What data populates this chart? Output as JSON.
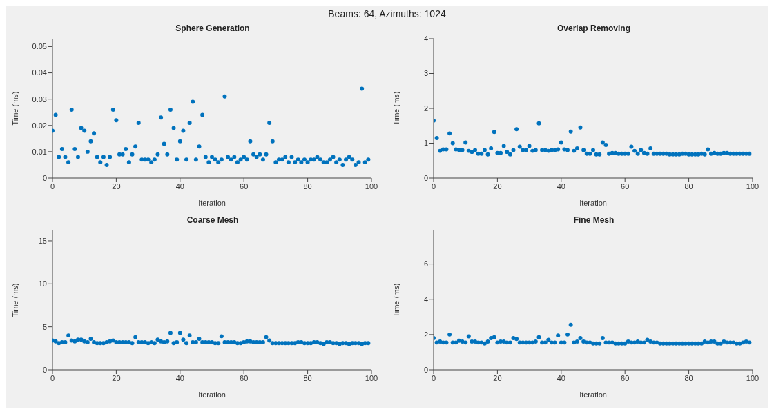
{
  "chart_data": [
    {
      "type": "scatter",
      "title": "Sphere Generation",
      "annotations": [
        "Beams: 64, Azimuths: 1024"
      ],
      "xlabel": "Iteration",
      "ylabel": "Time (ms)",
      "color": "#0072bd",
      "marker": "circle",
      "grid": false,
      "xlim": [
        0,
        100
      ],
      "xticks": [
        0,
        20,
        40,
        60,
        80,
        100
      ],
      "ylim": [
        0,
        0.053
      ],
      "yticks": [
        0,
        0.01,
        0.02,
        0.03,
        0.04,
        0.05
      ],
      "x": [
        0,
        1,
        2,
        3,
        4,
        5,
        6,
        7,
        8,
        9,
        10,
        11,
        12,
        13,
        14,
        15,
        16,
        17,
        18,
        19,
        20,
        21,
        22,
        23,
        24,
        25,
        26,
        27,
        28,
        29,
        30,
        31,
        32,
        33,
        34,
        35,
        36,
        37,
        38,
        39,
        40,
        41,
        42,
        43,
        44,
        45,
        46,
        47,
        48,
        49,
        50,
        51,
        52,
        53,
        54,
        55,
        56,
        57,
        58,
        59,
        60,
        61,
        62,
        63,
        64,
        65,
        66,
        67,
        68,
        69,
        70,
        71,
        72,
        73,
        74,
        75,
        76,
        77,
        78,
        79,
        80,
        81,
        82,
        83,
        84,
        85,
        86,
        87,
        88,
        89,
        90,
        91,
        92,
        93,
        94,
        95,
        96,
        97,
        98,
        99
      ],
      "values": [
        0.018,
        0.024,
        0.008,
        0.011,
        0.008,
        0.006,
        0.026,
        0.011,
        0.008,
        0.019,
        0.018,
        0.01,
        0.014,
        0.017,
        0.008,
        0.006,
        0.008,
        0.005,
        0.008,
        0.026,
        0.022,
        0.009,
        0.009,
        0.011,
        0.006,
        0.009,
        0.012,
        0.021,
        0.007,
        0.007,
        0.007,
        0.006,
        0.007,
        0.009,
        0.023,
        0.013,
        0.009,
        0.026,
        0.019,
        0.007,
        0.014,
        0.018,
        0.007,
        0.021,
        0.029,
        0.007,
        0.012,
        0.024,
        0.008,
        0.006,
        0.008,
        0.007,
        0.006,
        0.007,
        0.031,
        0.008,
        0.007,
        0.008,
        0.006,
        0.007,
        0.008,
        0.007,
        0.014,
        0.009,
        0.008,
        0.009,
        0.007,
        0.009,
        0.021,
        0.014,
        0.006,
        0.007,
        0.007,
        0.008,
        0.006,
        0.008,
        0.006,
        0.007,
        0.006,
        0.007,
        0.006,
        0.007,
        0.007,
        0.008,
        0.007,
        0.006,
        0.006,
        0.007,
        0.008,
        0.006,
        0.007,
        0.005,
        0.007,
        0.008,
        0.007,
        0.005,
        0.006,
        0.034,
        0.006,
        0.007
      ]
    },
    {
      "type": "scatter",
      "title": "Overlap Removing",
      "xlabel": "Iteration",
      "ylabel": "Time (ms)",
      "color": "#0072bd",
      "marker": "circle",
      "grid": false,
      "xlim": [
        0,
        100
      ],
      "xticks": [
        0,
        20,
        40,
        60,
        80,
        100
      ],
      "ylim": [
        0,
        4
      ],
      "yticks": [
        0,
        1,
        2,
        3,
        4
      ],
      "x": [
        0,
        1,
        2,
        3,
        4,
        5,
        6,
        7,
        8,
        9,
        10,
        11,
        12,
        13,
        14,
        15,
        16,
        17,
        18,
        19,
        20,
        21,
        22,
        23,
        24,
        25,
        26,
        27,
        28,
        29,
        30,
        31,
        32,
        33,
        34,
        35,
        36,
        37,
        38,
        39,
        40,
        41,
        42,
        43,
        44,
        45,
        46,
        47,
        48,
        49,
        50,
        51,
        52,
        53,
        54,
        55,
        56,
        57,
        58,
        59,
        60,
        61,
        62,
        63,
        64,
        65,
        66,
        67,
        68,
        69,
        70,
        71,
        72,
        73,
        74,
        75,
        76,
        77,
        78,
        79,
        80,
        81,
        82,
        83,
        84,
        85,
        86,
        87,
        88,
        89,
        90,
        91,
        92,
        93,
        94,
        95,
        96,
        97,
        98,
        99
      ],
      "values": [
        1.65,
        1.15,
        0.78,
        0.82,
        0.82,
        1.28,
        1.0,
        0.82,
        0.8,
        0.8,
        1.02,
        0.78,
        0.75,
        0.8,
        0.7,
        0.7,
        0.8,
        0.68,
        0.85,
        1.32,
        0.72,
        0.72,
        0.92,
        0.75,
        0.68,
        0.8,
        1.4,
        0.9,
        0.8,
        0.8,
        0.92,
        0.78,
        0.8,
        1.57,
        0.8,
        0.8,
        0.78,
        0.8,
        0.8,
        0.82,
        1.02,
        0.82,
        0.8,
        1.33,
        0.78,
        0.85,
        1.45,
        0.8,
        0.7,
        0.7,
        0.8,
        0.68,
        0.68,
        1.02,
        0.95,
        0.7,
        0.72,
        0.72,
        0.7,
        0.7,
        0.7,
        0.7,
        0.9,
        0.78,
        0.7,
        0.8,
        0.72,
        0.7,
        0.85,
        0.7,
        0.7,
        0.7,
        0.7,
        0.7,
        0.68,
        0.68,
        0.68,
        0.68,
        0.7,
        0.7,
        0.68,
        0.68,
        0.68,
        0.68,
        0.7,
        0.68,
        0.82,
        0.7,
        0.72,
        0.7,
        0.7,
        0.72,
        0.72,
        0.7,
        0.7,
        0.7,
        0.7,
        0.7,
        0.7,
        0.7
      ]
    },
    {
      "type": "scatter",
      "title": "Coarse Mesh",
      "xlabel": "Iteration",
      "ylabel": "Time (ms)",
      "color": "#0072bd",
      "marker": "circle",
      "grid": false,
      "xlim": [
        0,
        100
      ],
      "xticks": [
        0,
        20,
        40,
        60,
        80,
        100
      ],
      "ylim": [
        0,
        16.2
      ],
      "yticks": [
        0,
        5,
        10,
        15
      ],
      "x": [
        0,
        1,
        2,
        3,
        4,
        5,
        6,
        7,
        8,
        9,
        10,
        11,
        12,
        13,
        14,
        15,
        16,
        17,
        18,
        19,
        20,
        21,
        22,
        23,
        24,
        25,
        26,
        27,
        28,
        29,
        30,
        31,
        32,
        33,
        34,
        35,
        36,
        37,
        38,
        39,
        40,
        41,
        42,
        43,
        44,
        45,
        46,
        47,
        48,
        49,
        50,
        51,
        52,
        53,
        54,
        55,
        56,
        57,
        58,
        59,
        60,
        61,
        62,
        63,
        64,
        65,
        66,
        67,
        68,
        69,
        70,
        71,
        72,
        73,
        74,
        75,
        76,
        77,
        78,
        79,
        80,
        81,
        82,
        83,
        84,
        85,
        86,
        87,
        88,
        89,
        90,
        91,
        92,
        93,
        94,
        95,
        96,
        97,
        98,
        99
      ],
      "values": [
        3.4,
        3.3,
        3.1,
        3.2,
        3.2,
        4.0,
        3.4,
        3.3,
        3.5,
        3.5,
        3.3,
        3.2,
        3.6,
        3.2,
        3.1,
        3.1,
        3.1,
        3.2,
        3.3,
        3.4,
        3.2,
        3.2,
        3.2,
        3.2,
        3.2,
        3.1,
        3.8,
        3.2,
        3.2,
        3.2,
        3.1,
        3.2,
        3.1,
        3.5,
        3.3,
        3.2,
        3.3,
        4.3,
        3.1,
        3.2,
        4.3,
        3.5,
        3.1,
        4.0,
        3.2,
        3.2,
        3.6,
        3.2,
        3.2,
        3.2,
        3.2,
        3.1,
        3.1,
        3.9,
        3.2,
        3.2,
        3.2,
        3.2,
        3.1,
        3.1,
        3.2,
        3.3,
        3.3,
        3.2,
        3.2,
        3.2,
        3.2,
        3.8,
        3.4,
        3.1,
        3.1,
        3.1,
        3.1,
        3.1,
        3.1,
        3.1,
        3.1,
        3.2,
        3.2,
        3.1,
        3.1,
        3.1,
        3.2,
        3.2,
        3.1,
        3.0,
        3.2,
        3.2,
        3.1,
        3.1,
        3.0,
        3.1,
        3.1,
        3.0,
        3.1,
        3.1,
        3.1,
        3.0,
        3.1,
        3.1
      ]
    },
    {
      "type": "scatter",
      "title": "Fine Mesh",
      "xlabel": "Iteration",
      "ylabel": "Time (ms)",
      "color": "#0072bd",
      "marker": "circle",
      "grid": false,
      "xlim": [
        0,
        100
      ],
      "xticks": [
        0,
        20,
        40,
        60,
        80,
        100
      ],
      "ylim": [
        0,
        7.9
      ],
      "yticks": [
        0,
        2,
        4,
        6
      ],
      "x": [
        0,
        1,
        2,
        3,
        4,
        5,
        6,
        7,
        8,
        9,
        10,
        11,
        12,
        13,
        14,
        15,
        16,
        17,
        18,
        19,
        20,
        21,
        22,
        23,
        24,
        25,
        26,
        27,
        28,
        29,
        30,
        31,
        32,
        33,
        34,
        35,
        36,
        37,
        38,
        39,
        40,
        41,
        42,
        43,
        44,
        45,
        46,
        47,
        48,
        49,
        50,
        51,
        52,
        53,
        54,
        55,
        56,
        57,
        58,
        59,
        60,
        61,
        62,
        63,
        64,
        65,
        66,
        67,
        68,
        69,
        70,
        71,
        72,
        73,
        74,
        75,
        76,
        77,
        78,
        79,
        80,
        81,
        82,
        83,
        84,
        85,
        86,
        87,
        88,
        89,
        90,
        91,
        92,
        93,
        94,
        95,
        96,
        97,
        98,
        99
      ],
      "values": [
        1.8,
        1.55,
        1.6,
        1.55,
        1.55,
        2.0,
        1.55,
        1.55,
        1.65,
        1.6,
        1.55,
        1.9,
        1.6,
        1.6,
        1.55,
        1.55,
        1.5,
        1.6,
        1.8,
        1.85,
        1.55,
        1.6,
        1.6,
        1.55,
        1.55,
        1.8,
        1.75,
        1.55,
        1.55,
        1.55,
        1.55,
        1.55,
        1.6,
        1.85,
        1.55,
        1.55,
        1.7,
        1.55,
        1.55,
        1.95,
        1.55,
        1.55,
        2.0,
        2.55,
        1.55,
        1.6,
        1.8,
        1.6,
        1.55,
        1.55,
        1.5,
        1.5,
        1.5,
        1.8,
        1.55,
        1.55,
        1.55,
        1.5,
        1.5,
        1.5,
        1.5,
        1.6,
        1.55,
        1.55,
        1.6,
        1.55,
        1.55,
        1.7,
        1.6,
        1.55,
        1.55,
        1.5,
        1.5,
        1.5,
        1.5,
        1.5,
        1.5,
        1.5,
        1.5,
        1.5,
        1.5,
        1.5,
        1.5,
        1.5,
        1.5,
        1.6,
        1.55,
        1.6,
        1.6,
        1.5,
        1.5,
        1.6,
        1.55,
        1.55,
        1.55,
        1.5,
        1.5,
        1.55,
        1.6,
        1.55
      ]
    }
  ]
}
